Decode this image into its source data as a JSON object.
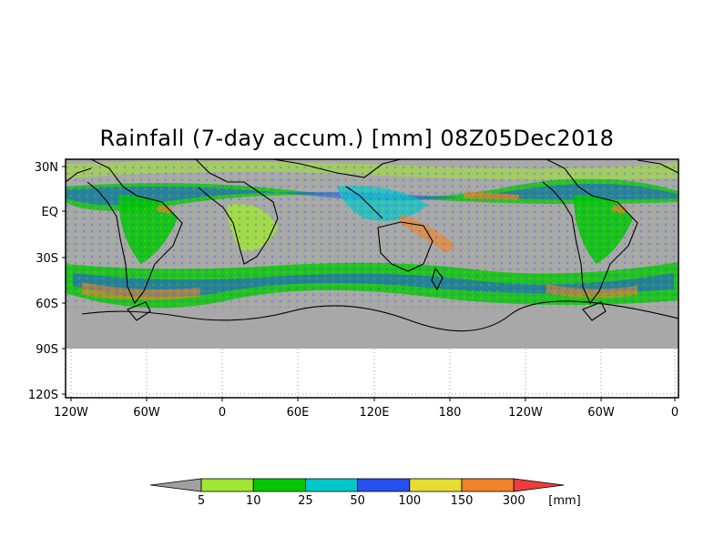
{
  "title": "Rainfall (7-day accum.) [mm] 08Z05Dec2018",
  "map": {
    "lat_labels": [
      "30N",
      "EQ",
      "30S",
      "60S",
      "90S",
      "120S"
    ],
    "lon_labels": [
      "120W",
      "60W",
      "0",
      "60E",
      "120E",
      "180",
      "120W",
      "60W",
      "0"
    ],
    "ocean_color": "#a8a8a8",
    "blank_color": "#ffffff"
  },
  "colorbar": {
    "unit": "[mm]",
    "thresholds": [
      "5",
      "10",
      "25",
      "50",
      "100",
      "150",
      "300"
    ],
    "colors": [
      "#a0a0a0",
      "#a0e632",
      "#00c800",
      "#00c8c8",
      "#2850f0",
      "#e6dc32",
      "#f08228",
      "#f03c3c"
    ]
  }
}
